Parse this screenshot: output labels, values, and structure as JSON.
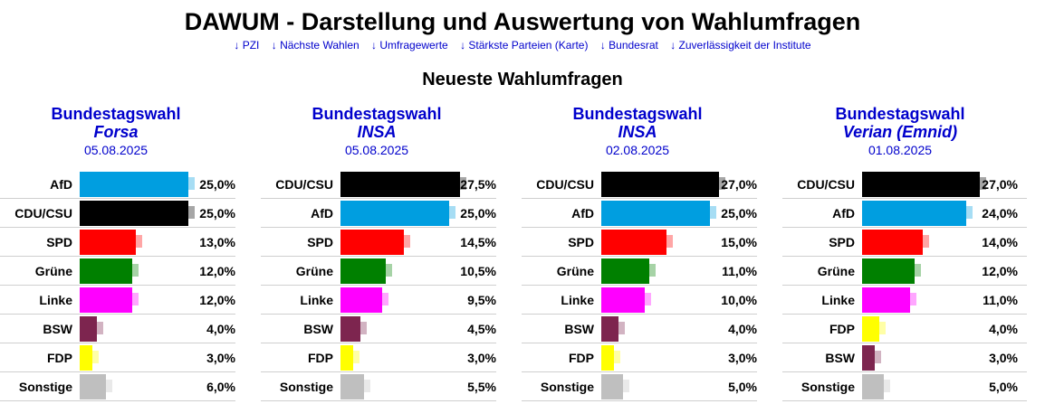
{
  "header": {
    "title": "DAWUM - Darstellung und Auswertung von Wahlumfragen",
    "nav": [
      "↓ PZI",
      "↓ Nächste Wahlen",
      "↓ Umfragewerte",
      "↓ Stärkste Parteien (Karte)",
      "↓ Bundesrat",
      "↓ Zuverlässigkeit der Institute"
    ],
    "subtitle": "Neueste Wahlumfragen"
  },
  "colors": {
    "AfD": "#009ee0",
    "CDU/CSU": "#000000",
    "SPD": "#ff0000",
    "Grüne": "#008000",
    "Linke": "#ff00ff",
    "BSW": "#7d254f",
    "FDP": "#ffff00",
    "Sonstige": "#bfbfbf",
    "link": "#0000cc"
  },
  "polls": [
    {
      "election": "Bundestagswahl",
      "institute": "Forsa",
      "date": "05.08.2025",
      "results": [
        {
          "party": "AfD",
          "value": 25.0,
          "label": "25,0%"
        },
        {
          "party": "CDU/CSU",
          "value": 25.0,
          "label": "25,0%"
        },
        {
          "party": "SPD",
          "value": 13.0,
          "label": "13,0%"
        },
        {
          "party": "Grüne",
          "value": 12.0,
          "label": "12,0%"
        },
        {
          "party": "Linke",
          "value": 12.0,
          "label": "12,0%"
        },
        {
          "party": "BSW",
          "value": 4.0,
          "label": "4,0%"
        },
        {
          "party": "FDP",
          "value": 3.0,
          "label": "3,0%"
        },
        {
          "party": "Sonstige",
          "value": 6.0,
          "label": "6,0%"
        }
      ]
    },
    {
      "election": "Bundestagswahl",
      "institute": "INSA",
      "date": "05.08.2025",
      "results": [
        {
          "party": "CDU/CSU",
          "value": 27.5,
          "label": "27,5%"
        },
        {
          "party": "AfD",
          "value": 25.0,
          "label": "25,0%"
        },
        {
          "party": "SPD",
          "value": 14.5,
          "label": "14,5%"
        },
        {
          "party": "Grüne",
          "value": 10.5,
          "label": "10,5%"
        },
        {
          "party": "Linke",
          "value": 9.5,
          "label": "9,5%"
        },
        {
          "party": "BSW",
          "value": 4.5,
          "label": "4,5%"
        },
        {
          "party": "FDP",
          "value": 3.0,
          "label": "3,0%"
        },
        {
          "party": "Sonstige",
          "value": 5.5,
          "label": "5,5%"
        }
      ]
    },
    {
      "election": "Bundestagswahl",
      "institute": "INSA",
      "date": "02.08.2025",
      "results": [
        {
          "party": "CDU/CSU",
          "value": 27.0,
          "label": "27,0%"
        },
        {
          "party": "AfD",
          "value": 25.0,
          "label": "25,0%"
        },
        {
          "party": "SPD",
          "value": 15.0,
          "label": "15,0%"
        },
        {
          "party": "Grüne",
          "value": 11.0,
          "label": "11,0%"
        },
        {
          "party": "Linke",
          "value": 10.0,
          "label": "10,0%"
        },
        {
          "party": "BSW",
          "value": 4.0,
          "label": "4,0%"
        },
        {
          "party": "FDP",
          "value": 3.0,
          "label": "3,0%"
        },
        {
          "party": "Sonstige",
          "value": 5.0,
          "label": "5,0%"
        }
      ]
    },
    {
      "election": "Bundestagswahl",
      "institute": "Verian (Emnid)",
      "date": "01.08.2025",
      "results": [
        {
          "party": "CDU/CSU",
          "value": 27.0,
          "label": "27,0%"
        },
        {
          "party": "AfD",
          "value": 24.0,
          "label": "24,0%"
        },
        {
          "party": "SPD",
          "value": 14.0,
          "label": "14,0%"
        },
        {
          "party": "Grüne",
          "value": 12.0,
          "label": "12,0%"
        },
        {
          "party": "Linke",
          "value": 11.0,
          "label": "11,0%"
        },
        {
          "party": "FDP",
          "value": 4.0,
          "label": "4,0%"
        },
        {
          "party": "BSW",
          "value": 3.0,
          "label": "3,0%"
        },
        {
          "party": "Sonstige",
          "value": 5.0,
          "label": "5,0%"
        }
      ]
    }
  ]
}
